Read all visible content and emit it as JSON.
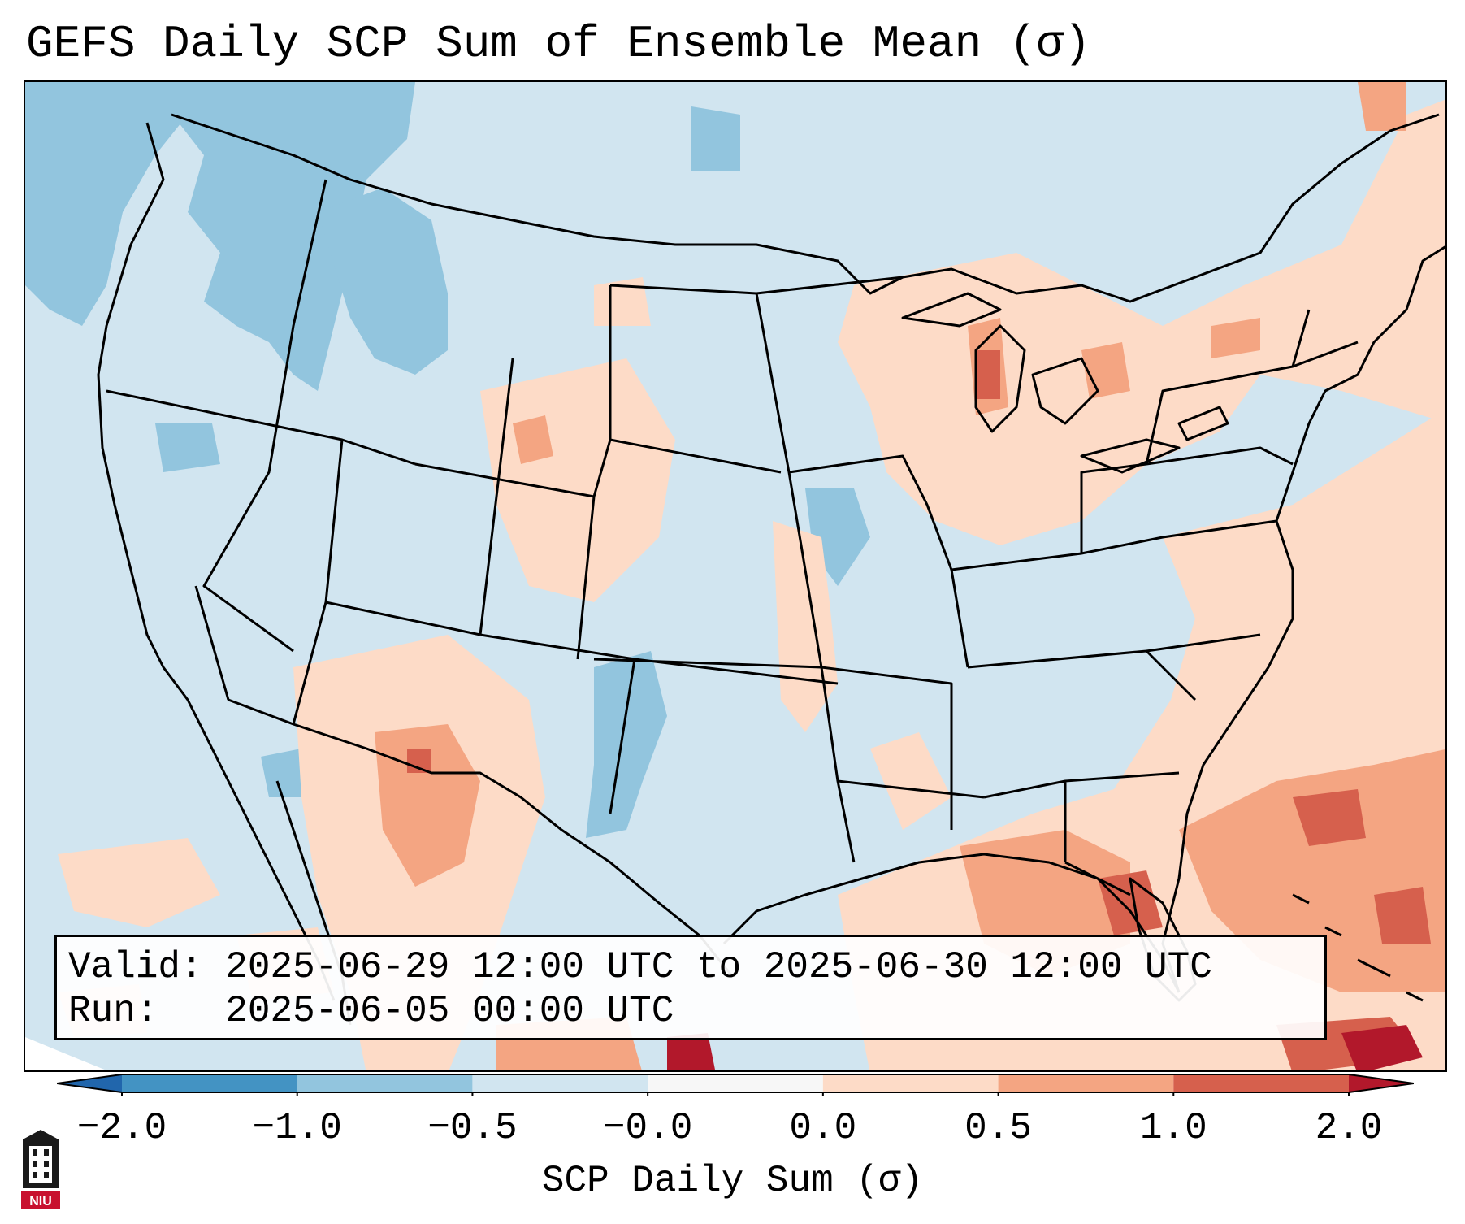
{
  "title": "GEFS Daily SCP Sum of Ensemble Mean (σ)",
  "info": {
    "valid_label": "Valid:",
    "valid_value": "2025-06-29 12:00 UTC to 2025-06-30 12:00 UTC",
    "run_label": "Run:",
    "run_value": "2025-06-05 00:00 UTC"
  },
  "colorbar": {
    "label": "SCP Daily Sum (σ)",
    "ticks": [
      "−2.0",
      "−1.0",
      "−0.5",
      "−0.0",
      "0.0",
      "0.5",
      "1.0",
      "2.0"
    ],
    "colors": {
      "under": "#2166ac",
      "bins": [
        "#4393c3",
        "#92c5de",
        "#d1e5f0",
        "#f7f7f7",
        "#fddbc7",
        "#f4a582",
        "#d6604d"
      ],
      "over": "#b2182b"
    }
  },
  "map": {
    "background_color": "#d1e5f0",
    "border_color": "#000000"
  },
  "logo": {
    "text": "NIU",
    "color": "#c8102e"
  }
}
